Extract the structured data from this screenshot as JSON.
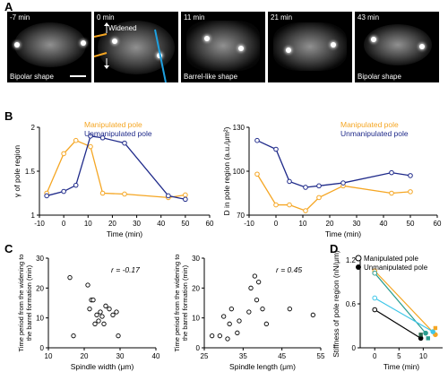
{
  "panel_labels": {
    "a": "A",
    "b": "B",
    "c": "C",
    "d": "D"
  },
  "panel_a": {
    "images": [
      {
        "time": "-7 min",
        "caption": "Bipolar shape"
      },
      {
        "time": "0 min",
        "caption": "",
        "annotation": "Widened"
      },
      {
        "time": "11 min",
        "caption": "Barrel-like shape"
      },
      {
        "time": "21 min",
        "caption": ""
      },
      {
        "time": "43 min",
        "caption": "Bipolar shape"
      }
    ]
  },
  "colors": {
    "manipulated": "#f5a623",
    "unmanipulated": "#1f2a8a",
    "teal": "#2a9d8f",
    "cyan": "#3fc6e8",
    "gray": "#999999"
  },
  "chart_data": [
    {
      "id": "B-left",
      "type": "line",
      "xlabel": "Time (min)",
      "ylabel": "γ of pole region",
      "xlim": [
        -10,
        60
      ],
      "xticks": [
        -10,
        0,
        10,
        20,
        30,
        40,
        50,
        60
      ],
      "ylim": [
        1.0,
        2.0
      ],
      "yticks": [
        1.0,
        1.5,
        2.0
      ],
      "legend": "top-right",
      "series": [
        {
          "name": "Manipulated pole",
          "x": [
            -7,
            0,
            5,
            11,
            16,
            25,
            43,
            50
          ],
          "y": [
            1.25,
            1.7,
            1.85,
            1.78,
            1.25,
            1.24,
            1.2,
            1.23
          ]
        },
        {
          "name": "Unmanipulated pole",
          "x": [
            -7,
            0,
            5,
            11,
            16,
            25,
            43,
            50
          ],
          "y": [
            1.22,
            1.27,
            1.34,
            1.9,
            1.88,
            1.82,
            1.22,
            1.18
          ]
        }
      ]
    },
    {
      "id": "B-right",
      "type": "line",
      "xlabel": "Time (min)",
      "ylabel": "D in pole region (a.u./μm²)",
      "xlim": [
        -10,
        60
      ],
      "xticks": [
        -10,
        0,
        10,
        20,
        30,
        40,
        50,
        60
      ],
      "ylim": [
        70,
        130
      ],
      "yticks": [
        70,
        100,
        130
      ],
      "legend": "top-right",
      "series": [
        {
          "name": "Manipulated pole",
          "x": [
            -7,
            0,
            5,
            11,
            16,
            25,
            43,
            50
          ],
          "y": [
            98,
            77,
            77,
            73,
            82,
            90,
            85,
            86
          ]
        },
        {
          "name": "Unmanipulated pole",
          "x": [
            -7,
            0,
            5,
            11,
            16,
            25,
            43,
            50
          ],
          "y": [
            121,
            115,
            93,
            89,
            90,
            92,
            99,
            97
          ]
        }
      ]
    },
    {
      "id": "C-left",
      "type": "scatter",
      "xlabel": "Spindle width (μm)",
      "ylabel": "Time period from the widening to the barrel formation (min)",
      "xlim": [
        10,
        40
      ],
      "xticks": [
        10,
        20,
        30,
        40
      ],
      "ylim": [
        0,
        30
      ],
      "yticks": [
        0,
        10,
        20,
        30
      ],
      "annotation": "r = -0.17",
      "x": [
        16,
        17,
        21,
        21.5,
        22,
        23,
        23.5,
        24,
        24.5,
        25,
        26,
        27,
        28,
        29,
        29.5,
        25.5,
        22.5
      ],
      "y": [
        23.5,
        4,
        21,
        13,
        16,
        8,
        11,
        9,
        12,
        10.5,
        14,
        13,
        11,
        12,
        4,
        8,
        16
      ]
    },
    {
      "id": "C-right",
      "type": "scatter",
      "xlabel": "Spindle length (μm)",
      "ylabel": "Time period from the widening to the barrel formation (min)",
      "xlim": [
        25,
        55
      ],
      "xticks": [
        25,
        35,
        45,
        55
      ],
      "ylim": [
        0,
        30
      ],
      "yticks": [
        0,
        10,
        20,
        30
      ],
      "annotation": "r = 0.45",
      "x": [
        27,
        29,
        30,
        31,
        31.5,
        32,
        33.5,
        34,
        36.5,
        37,
        38,
        38.5,
        39,
        40,
        41,
        47,
        53
      ],
      "y": [
        4,
        4,
        10.5,
        3,
        8,
        13,
        5,
        9,
        12,
        20,
        24,
        16,
        22,
        13,
        8,
        13,
        11
      ]
    },
    {
      "id": "D",
      "type": "line",
      "xlabel": "Time (min)",
      "ylabel": "Stiffness of pole region (nN/μm)",
      "xlim": [
        -3,
        14
      ],
      "xticks": [
        0,
        5,
        10
      ],
      "ylim": [
        0,
        1.2
      ],
      "yticks": [
        0,
        0.6,
        1.2
      ],
      "legend": "top-right",
      "series": [
        {
          "name": "Manipulated pole",
          "x": [
            0,
            12.5
          ],
          "y": [
            1.05,
            0.18
          ]
        },
        {
          "name": "",
          "x": [
            0,
            10.5
          ],
          "y": [
            1.02,
            0.2
          ]
        },
        {
          "name": "",
          "x": [
            0,
            12
          ],
          "y": [
            0.68,
            0.22
          ]
        },
        {
          "name": "",
          "x": [
            0,
            9.5
          ],
          "y": [
            0.52,
            0.13
          ]
        }
      ],
      "unmanipulated_points": {
        "name": "Unmanipulated pole",
        "x": [
          9.5,
          11,
          12.5
        ],
        "y": [
          0.18,
          0.13,
          0.27
        ]
      }
    }
  ]
}
